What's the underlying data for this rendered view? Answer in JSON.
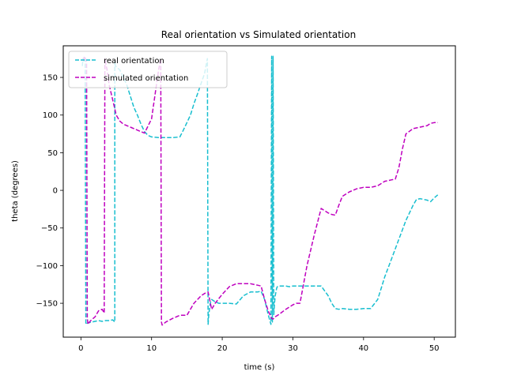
{
  "chart_data": {
    "type": "line",
    "title": "Real orientation vs Simulated orientation",
    "xlabel": "time (s)",
    "ylabel": "theta (degrees)",
    "xlim": [
      -2.5,
      53
    ],
    "ylim": [
      -195,
      192
    ],
    "xticks": [
      0,
      10,
      20,
      30,
      40,
      50
    ],
    "yticks": [
      -150,
      -100,
      -50,
      0,
      50,
      100,
      150
    ],
    "grid": false,
    "legend_position": "top-left",
    "series": [
      {
        "name": "real orientation",
        "color": "#17becf",
        "style": "dashed",
        "x": [
          0.2,
          0.3,
          0.5,
          0.6,
          0.7,
          0.8,
          1.0,
          1.5,
          2.0,
          2.5,
          3.0,
          3.5,
          4.0,
          4.5,
          4.8,
          4.8,
          4.9,
          5.5,
          6.0,
          6.5,
          7.0,
          7.5,
          8.0,
          8.5,
          9.0,
          9.5,
          10.0,
          11.0,
          12.0,
          13.0,
          14.0,
          14.5,
          15.0,
          15.5,
          16.0,
          16.5,
          17.0,
          17.5,
          17.9,
          18.0,
          18.1,
          18.3,
          18.5,
          19.0,
          19.5,
          20.0,
          21.0,
          22.0,
          23.0,
          24.0,
          25.0,
          25.5,
          26.0,
          26.5,
          26.9,
          27.0,
          27.0,
          27.1,
          27.2,
          27.3,
          27.4,
          27.5,
          27.6,
          27.7,
          27.8,
          28.0,
          28.5,
          29.0,
          29.5,
          30.0,
          30.5,
          31.0,
          32.0,
          33.0,
          34.0,
          35.0,
          35.5,
          36.0,
          36.5,
          37.0,
          38.0,
          39.0,
          40.0,
          41.0,
          42.0,
          42.5,
          43.0,
          44.0,
          45.0,
          46.0,
          46.5,
          47.0,
          47.5,
          48.0,
          48.5,
          49.0,
          49.5,
          50.0,
          50.5
        ],
        "y": [
          165,
          175,
          170,
          178,
          -178,
          -177,
          -176,
          -175,
          -174,
          -173,
          -174,
          -173,
          -173,
          -172,
          -175,
          172,
          165,
          160,
          150,
          140,
          125,
          110,
          100,
          88,
          78,
          73,
          71,
          70,
          70,
          70,
          71,
          80,
          90,
          100,
          115,
          128,
          142,
          155,
          175,
          -178,
          -165,
          -150,
          -145,
          -148,
          -150,
          -150,
          -150,
          -151,
          -140,
          -135,
          -135,
          -134,
          -145,
          -165,
          -178,
          178,
          176,
          -175,
          178,
          -165,
          -150,
          -140,
          -135,
          -130,
          -128,
          -127,
          -127,
          -127,
          -128,
          -127,
          -127,
          -127,
          -127,
          -127,
          -127,
          -140,
          -150,
          -157,
          -158,
          -157,
          -158,
          -158,
          -157,
          -157,
          -145,
          -130,
          -115,
          -90,
          -65,
          -40,
          -30,
          -20,
          -12,
          -11,
          -12,
          -13,
          -15,
          -10,
          -6
        ]
      },
      {
        "name": "simulated orientation",
        "color": "#bf00bf",
        "style": "dashed",
        "x": [
          0.3,
          0.5,
          0.8,
          0.9,
          1.0,
          1.2,
          1.5,
          2.0,
          2.5,
          3.0,
          3.3,
          3.4,
          3.5,
          3.7,
          4.0,
          4.5,
          5.0,
          5.5,
          6.0,
          7.0,
          8.0,
          9.0,
          10.0,
          11.0,
          11.3,
          11.4,
          11.5,
          12.0,
          13.0,
          14.0,
          15.0,
          16.0,
          17.0,
          17.5,
          18.0,
          18.5,
          19.0,
          20.0,
          21.0,
          22.0,
          23.0,
          24.0,
          25.0,
          25.5,
          26.0,
          26.5,
          27.0,
          27.2,
          27.5,
          28.0,
          29.0,
          30.0,
          30.5,
          31.0,
          32.0,
          33.0,
          34.0,
          35.0,
          35.5,
          36.0,
          36.5,
          37.0,
          38.0,
          39.0,
          40.0,
          41.0,
          42.0,
          43.0,
          44.0,
          44.5,
          45.0,
          45.5,
          46.0,
          47.0,
          48.0,
          49.0,
          49.5,
          50.0,
          50.5
        ],
        "y": [
          172,
          178,
          170,
          -170,
          -178,
          -175,
          -172,
          -168,
          -160,
          -158,
          -163,
          175,
          170,
          160,
          140,
          120,
          100,
          92,
          88,
          84,
          80,
          76,
          95,
          160,
          175,
          -175,
          -179,
          -175,
          -170,
          -166,
          -166,
          -150,
          -140,
          -137,
          -135,
          -158,
          -150,
          -138,
          -128,
          -124,
          -124,
          -124,
          -126,
          -127,
          -145,
          -160,
          -170,
          -171,
          -168,
          -165,
          -158,
          -152,
          -150,
          -150,
          -100,
          -60,
          -24,
          -30,
          -32,
          -33,
          -20,
          -8,
          -2,
          2,
          4,
          4,
          6,
          12,
          14,
          15,
          30,
          55,
          75,
          82,
          84,
          86,
          89,
          90,
          90
        ]
      }
    ]
  }
}
